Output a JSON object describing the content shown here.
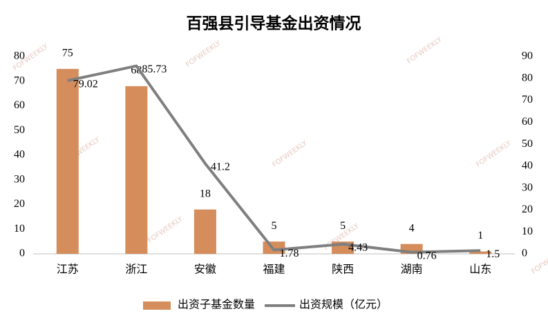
{
  "chart_data": {
    "type": "combo",
    "title": "百强县引导基金出资情况",
    "categories": [
      "江苏",
      "浙江",
      "安徽",
      "福建",
      "陕西",
      "湖南",
      "山东"
    ],
    "series": [
      {
        "name": "出资子基金数量",
        "type": "bar",
        "color": "#d58d5c",
        "values": [
          75,
          68,
          18,
          5,
          5,
          4,
          1
        ]
      },
      {
        "name": "出资规模（亿元）",
        "type": "line",
        "axis": "y2",
        "color": "#7f7f7f",
        "values": [
          79.02,
          85.73,
          41.2,
          1.78,
          4.43,
          0.76,
          1.5
        ]
      }
    ],
    "ylim": [
      0,
      80
    ],
    "yticks": [
      0,
      10,
      20,
      30,
      40,
      50,
      60,
      70,
      80
    ],
    "y2lim": [
      0,
      90
    ],
    "y2ticks": [
      0,
      10,
      20,
      30,
      40,
      50,
      60,
      70,
      80,
      90
    ],
    "grid": false,
    "legend": "bottom",
    "watermark": "FOFWEEKLY"
  }
}
